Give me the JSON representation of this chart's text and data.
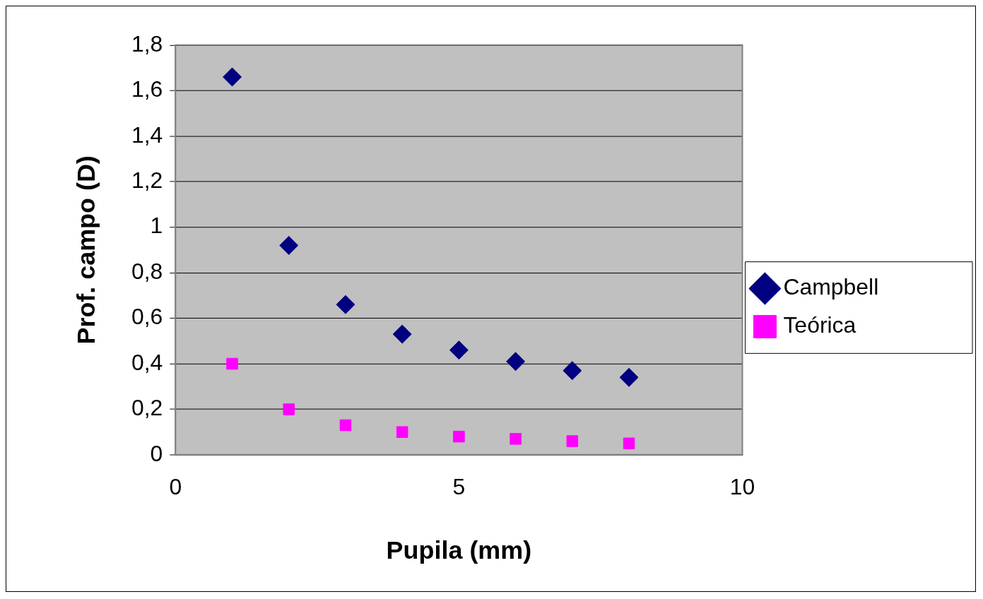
{
  "chart_data": {
    "type": "scatter",
    "xlabel": "Pupila (mm)",
    "ylabel": "Prof. campo (D)",
    "x": [
      1,
      2,
      3,
      4,
      5,
      6,
      7,
      8
    ],
    "series": [
      {
        "name": "Campbell",
        "color": "#000080",
        "marker": "diamond",
        "values": [
          1.66,
          0.92,
          0.66,
          0.53,
          0.46,
          0.41,
          0.37,
          0.34
        ]
      },
      {
        "name": "Teórica",
        "color": "#ff00ff",
        "marker": "square",
        "values": [
          0.4,
          0.2,
          0.13,
          0.1,
          0.08,
          0.07,
          0.06,
          0.05
        ]
      }
    ],
    "xlim": [
      0,
      10
    ],
    "xticks": [
      0,
      5,
      10
    ],
    "ylim": [
      0,
      1.8
    ],
    "yticks": [
      0,
      {
        "value": 0.2,
        "label": "0,2"
      },
      {
        "value": 0.4,
        "label": "0,4"
      },
      {
        "value": 0.6,
        "label": "0,6"
      },
      {
        "value": 0.8,
        "label": "0,8"
      },
      1,
      {
        "value": 1.2,
        "label": "1,2"
      },
      {
        "value": 1.4,
        "label": "1,4"
      },
      {
        "value": 1.6,
        "label": "1,6"
      },
      {
        "value": 1.8,
        "label": "1,8"
      }
    ],
    "grid": "y",
    "legend": "right"
  }
}
